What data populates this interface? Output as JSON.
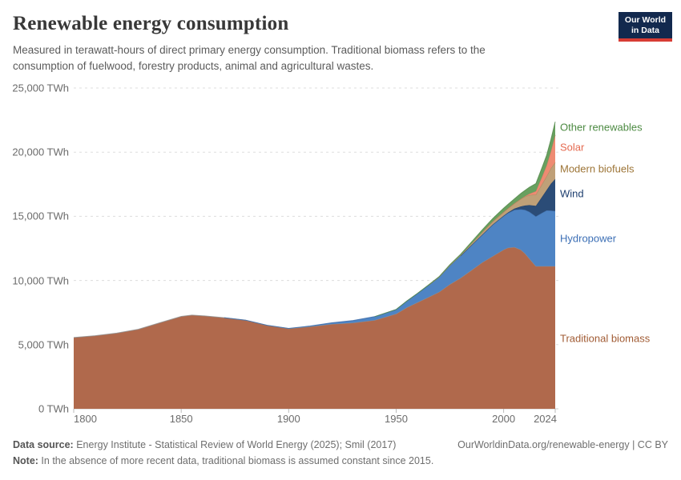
{
  "header": {
    "title": "Renewable energy consumption",
    "subtitle": "Measured in terawatt-hours of direct primary energy consumption. Traditional biomass refers to the consumption of fuelwood, forestry products, animal and agricultural wastes.",
    "logo_line1": "Our World",
    "logo_line2": "in Data",
    "logo_bg": "#12294E",
    "logo_stripe": "#D73C34"
  },
  "footer": {
    "source_label": "Data source:",
    "source_text": " Energy Institute - Statistical Review of World Energy (2025); Smil (2017)",
    "link": "OurWorldinData.org/renewable-energy | CC BY",
    "note_label": "Note:",
    "note_text": " In the absence of more recent data, traditional biomass is assumed constant since 2015."
  },
  "chart_data": {
    "type": "area",
    "stacked": true,
    "unit": "TWh",
    "xlabel": "",
    "ylabel": "",
    "xlim": [
      1800,
      2024
    ],
    "ylim": [
      0,
      25000
    ],
    "grid": "dashed-horizontal",
    "legend_position": "right-of-plot",
    "x": [
      1800,
      1810,
      1820,
      1830,
      1840,
      1850,
      1855,
      1860,
      1870,
      1880,
      1890,
      1900,
      1910,
      1920,
      1930,
      1940,
      1950,
      1955,
      1960,
      1965,
      1970,
      1975,
      1980,
      1985,
      1990,
      1995,
      2000,
      2002,
      2005,
      2008,
      2010,
      2012,
      2015,
      2018,
      2020,
      2022,
      2024
    ],
    "series": [
      {
        "id": "traditional-biomass",
        "name": "Traditional biomass",
        "fill": "#B0694C",
        "stroke": "#8F8F8F",
        "label_color": "#A15C35",
        "label_y": 423,
        "values": [
          5556,
          5700,
          5900,
          6200,
          6700,
          7200,
          7300,
          7250,
          7100,
          6900,
          6500,
          6250,
          6400,
          6600,
          6700,
          6900,
          7400,
          7900,
          8300,
          8700,
          9100,
          9700,
          10200,
          10800,
          11400,
          11900,
          12400,
          12550,
          12600,
          12400,
          12100,
          11700,
          11111,
          11111,
          11111,
          11111,
          11111
        ]
      },
      {
        "id": "hydropower",
        "name": "Hydropower",
        "fill": "#4E84C4",
        "stroke": "#3D6CA8",
        "label_color": "#3C6FB5",
        "label_y": 298,
        "values": [
          0,
          0,
          0,
          0,
          0,
          0,
          0,
          0,
          0,
          5,
          9,
          17,
          50,
          104,
          180,
          280,
          334,
          495,
          690,
          920,
          1160,
          1450,
          1720,
          1950,
          2160,
          2460,
          2620,
          2700,
          2900,
          3150,
          3400,
          3650,
          3880,
          4170,
          4350,
          4330,
          4300
        ]
      },
      {
        "id": "wind",
        "name": "Wind",
        "fill": "#2B4C77",
        "stroke": "#223E63",
        "label_color": "#1C3D6E",
        "label_y": 242,
        "values": [
          0,
          0,
          0,
          0,
          0,
          0,
          0,
          0,
          0,
          0,
          0,
          0,
          0,
          0,
          0,
          0,
          0,
          0,
          0,
          0,
          0,
          0,
          0,
          1,
          4,
          8,
          31,
          52,
          104,
          220,
          342,
          520,
          830,
          1270,
          1590,
          2100,
          2500
        ]
      },
      {
        "id": "modern-biofuels",
        "name": "Modern biofuels",
        "fill": "#BFA078",
        "stroke": "#A3855C",
        "label_color": "#9D7537",
        "label_y": 211,
        "values": [
          0,
          0,
          0,
          0,
          0,
          0,
          0,
          0,
          0,
          0,
          0,
          0,
          0,
          0,
          0,
          0,
          0,
          0,
          0,
          0,
          9,
          28,
          50,
          120,
          187,
          230,
          280,
          310,
          400,
          580,
          700,
          780,
          880,
          1000,
          1070,
          1200,
          1300
        ]
      },
      {
        "id": "solar",
        "name": "Solar",
        "fill": "#EE8B72",
        "stroke": "#D9755C",
        "label_color": "#E56A50",
        "label_y": 184,
        "values": [
          0,
          0,
          0,
          0,
          0,
          0,
          0,
          0,
          0,
          0,
          0,
          0,
          0,
          0,
          0,
          0,
          0,
          0,
          0,
          0,
          0,
          0,
          0,
          0,
          0,
          1,
          1,
          2,
          4,
          12,
          32,
          100,
          256,
          585,
          844,
          1320,
          2130
        ]
      },
      {
        "id": "other-renewables",
        "name": "Other renewables",
        "fill": "#68A05F",
        "stroke": "#558A4C",
        "label_color": "#4C8A42",
        "label_y": 159,
        "values": [
          0,
          0,
          0,
          0,
          0,
          0,
          0,
          0,
          0,
          0,
          0,
          0,
          0,
          0,
          0,
          0,
          10,
          12,
          16,
          22,
          30,
          50,
          75,
          120,
          180,
          240,
          300,
          315,
          350,
          420,
          450,
          520,
          600,
          720,
          800,
          920,
          1030
        ]
      }
    ],
    "yticks": [
      {
        "value": 0,
        "label": "0 TWh"
      },
      {
        "value": 5000,
        "label": "5,000 TWh"
      },
      {
        "value": 10000,
        "label": "10,000 TWh"
      },
      {
        "value": 15000,
        "label": "15,000 TWh"
      },
      {
        "value": 20000,
        "label": "20,000 TWh"
      },
      {
        "value": 25000,
        "label": "25,000 TWh"
      }
    ],
    "xticks": [
      {
        "value": 1800,
        "label": "1800",
        "align": "left"
      },
      {
        "value": 1850,
        "label": "1850",
        "align": "center"
      },
      {
        "value": 1900,
        "label": "1900",
        "align": "center"
      },
      {
        "value": 1950,
        "label": "1950",
        "align": "center"
      },
      {
        "value": 2000,
        "label": "2000",
        "align": "center"
      },
      {
        "value": 2024,
        "label": "2024",
        "align": "right"
      }
    ],
    "colors": {
      "gridline": "#DDDDDD",
      "axis_baseline": "#CCCCCC",
      "tick": "#BBBBBB",
      "axis_text": "#6B6B6B"
    }
  }
}
